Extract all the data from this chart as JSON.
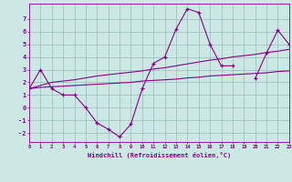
{
  "xlabel": "Windchill (Refroidissement éolien,°C)",
  "background_color": "#cce8e4",
  "line_color": "#880088",
  "grid_color": "#99bbbb",
  "x_data": [
    0,
    1,
    2,
    3,
    4,
    5,
    6,
    7,
    8,
    9,
    10,
    11,
    12,
    13,
    14,
    15,
    16,
    17,
    18,
    19,
    20,
    21,
    22,
    23
  ],
  "y_main": [
    1.5,
    3.0,
    1.5,
    1.0,
    1.0,
    0.0,
    -1.2,
    -1.7,
    -2.3,
    -1.3,
    1.5,
    3.5,
    4.0,
    6.2,
    7.8,
    7.5,
    5.0,
    3.3,
    3.3,
    null,
    2.3,
    4.3,
    6.1,
    5.0
  ],
  "y_line1": [
    1.5,
    1.75,
    2.0,
    2.1,
    2.2,
    2.35,
    2.5,
    2.6,
    2.7,
    2.8,
    2.9,
    3.05,
    3.15,
    3.3,
    3.45,
    3.6,
    3.75,
    3.85,
    4.0,
    4.1,
    4.2,
    4.35,
    4.45,
    4.6
  ],
  "y_line2": [
    1.5,
    1.6,
    1.65,
    1.7,
    1.75,
    1.8,
    1.85,
    1.9,
    1.95,
    2.0,
    2.1,
    2.15,
    2.2,
    2.25,
    2.35,
    2.4,
    2.5,
    2.55,
    2.6,
    2.65,
    2.7,
    2.75,
    2.85,
    2.9
  ],
  "xlim": [
    0,
    23
  ],
  "ylim": [
    -2.7,
    8.2
  ],
  "yticks": [
    -2,
    -1,
    0,
    1,
    2,
    3,
    4,
    5,
    6,
    7
  ],
  "xticks": [
    0,
    1,
    2,
    3,
    4,
    5,
    6,
    7,
    8,
    9,
    10,
    11,
    12,
    13,
    14,
    15,
    16,
    17,
    18,
    19,
    20,
    21,
    22,
    23
  ]
}
